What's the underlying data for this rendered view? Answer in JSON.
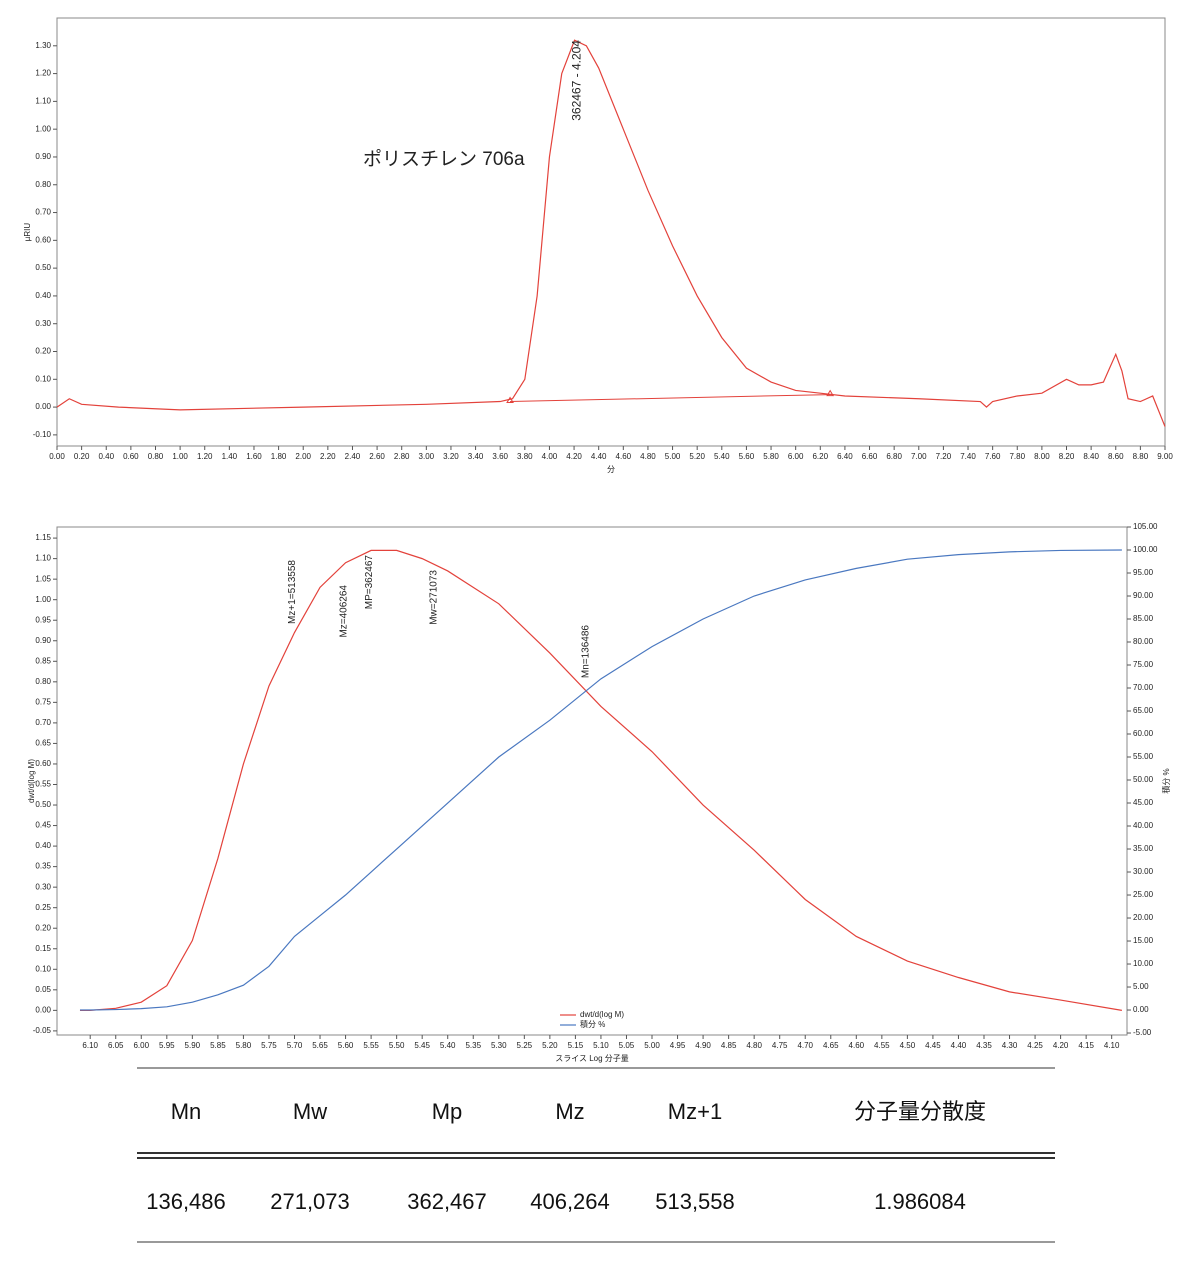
{
  "chart_data": [
    {
      "type": "line",
      "title": "ポリスチレン 706a",
      "xlabel": "分",
      "ylabel": "µRIU",
      "color": "#e3423b",
      "xlim": [
        0,
        9
      ],
      "ylim": [
        -0.14,
        1.4
      ],
      "x": [
        0,
        0.1,
        0.2,
        0.5,
        1.0,
        2.0,
        3.0,
        3.6,
        3.7,
        3.8,
        3.9,
        4.0,
        4.1,
        4.204,
        4.3,
        4.4,
        4.6,
        4.8,
        5.0,
        5.2,
        5.4,
        5.6,
        5.8,
        6.0,
        6.2,
        6.4,
        7.0,
        7.5,
        7.55,
        7.6,
        7.8,
        8.0,
        8.2,
        8.3,
        8.4,
        8.5,
        8.55,
        8.6,
        8.65,
        8.7,
        8.8,
        8.9,
        9.0
      ],
      "values": [
        0.0,
        0.03,
        0.01,
        0.0,
        -0.01,
        0.0,
        0.01,
        0.02,
        0.03,
        0.1,
        0.4,
        0.9,
        1.2,
        1.32,
        1.3,
        1.22,
        1.0,
        0.78,
        0.58,
        0.4,
        0.25,
        0.14,
        0.09,
        0.06,
        0.05,
        0.04,
        0.03,
        0.02,
        0.0,
        0.02,
        0.04,
        0.05,
        0.1,
        0.08,
        0.08,
        0.09,
        0.14,
        0.19,
        0.13,
        0.03,
        0.02,
        0.04,
        -0.07
      ],
      "baseline": {
        "x": [
          3.68,
          6.28
        ],
        "values": [
          0.02,
          0.045
        ]
      },
      "annotations": [
        {
          "text": "362467 - 4.204",
          "x": 4.204
        }
      ],
      "xticks": [
        {
          "value": 0,
          "label": "0.00"
        },
        {
          "value": 0.2,
          "label": "0.20"
        },
        {
          "value": 0.4,
          "label": "0.40"
        },
        {
          "value": 0.6,
          "label": "0.60"
        },
        {
          "value": 0.8,
          "label": "0.80"
        },
        {
          "value": 1,
          "label": "1.00"
        },
        {
          "value": 1.2,
          "label": "1.20"
        },
        {
          "value": 1.4,
          "label": "1.40"
        },
        {
          "value": 1.6,
          "label": "1.60"
        },
        {
          "value": 1.8,
          "label": "1.80"
        },
        {
          "value": 2,
          "label": "2.00"
        },
        {
          "value": 2.2,
          "label": "2.20"
        },
        {
          "value": 2.4,
          "label": "2.40"
        },
        {
          "value": 2.6,
          "label": "2.60"
        },
        {
          "value": 2.8,
          "label": "2.80"
        },
        {
          "value": 3,
          "label": "3.00"
        },
        {
          "value": 3.2,
          "label": "3.20"
        },
        {
          "value": 3.4,
          "label": "3.40"
        },
        {
          "value": 3.6,
          "label": "3.60"
        },
        {
          "value": 3.8,
          "label": "3.80"
        },
        {
          "value": 4,
          "label": "4.00"
        },
        {
          "value": 4.2,
          "label": "4.20"
        },
        {
          "value": 4.4,
          "label": "4.40"
        },
        {
          "value": 4.6,
          "label": "4.60"
        },
        {
          "value": 4.8,
          "label": "4.80"
        },
        {
          "value": 5,
          "label": "5.00"
        },
        {
          "value": 5.2,
          "label": "5.20"
        },
        {
          "value": 5.4,
          "label": "5.40"
        },
        {
          "value": 5.6,
          "label": "5.60"
        },
        {
          "value": 5.8,
          "label": "5.80"
        },
        {
          "value": 6,
          "label": "6.00"
        },
        {
          "value": 6.2,
          "label": "6.20"
        },
        {
          "value": 6.4,
          "label": "6.40"
        },
        {
          "value": 6.6,
          "label": "6.60"
        },
        {
          "value": 6.8,
          "label": "6.80"
        },
        {
          "value": 7,
          "label": "7.00"
        },
        {
          "value": 7.2,
          "label": "7.20"
        },
        {
          "value": 7.4,
          "label": "7.40"
        },
        {
          "value": 7.6,
          "label": "7.60"
        },
        {
          "value": 7.8,
          "label": "7.80"
        },
        {
          "value": 8,
          "label": "8.00"
        },
        {
          "value": 8.2,
          "label": "8.20"
        },
        {
          "value": 8.4,
          "label": "8.40"
        },
        {
          "value": 8.6,
          "label": "8.60"
        },
        {
          "value": 8.8,
          "label": "8.80"
        },
        {
          "value": 9,
          "label": "9.00"
        }
      ],
      "yticks": [
        {
          "value": -0.1,
          "label": "-0.10"
        },
        {
          "value": 0,
          "label": "0.00"
        },
        {
          "value": 0.1,
          "label": "0.10"
        },
        {
          "value": 0.2,
          "label": "0.20"
        },
        {
          "value": 0.3,
          "label": "0.30"
        },
        {
          "value": 0.4,
          "label": "0.40"
        },
        {
          "value": 0.5,
          "label": "0.50"
        },
        {
          "value": 0.6,
          "label": "0.60"
        },
        {
          "value": 0.7,
          "label": "0.70"
        },
        {
          "value": 0.8,
          "label": "0.80"
        },
        {
          "value": 0.9,
          "label": "0.90"
        },
        {
          "value": 1.0,
          "label": "1.00"
        },
        {
          "value": 1.1,
          "label": "1.10"
        },
        {
          "value": 1.2,
          "label": "1.20"
        },
        {
          "value": 1.3,
          "label": "1.30"
        }
      ]
    },
    {
      "type": "line",
      "xlabel": "スライス Log 分子量",
      "ylabel": "dwt/d(log M)",
      "y2label": "積分 %",
      "xlim": [
        6.165,
        4.07
      ],
      "ylim": [
        -0.06,
        1.177
      ],
      "y2lim": [
        -5.43,
        105
      ],
      "x": [
        6.12,
        6.1,
        6.05,
        6.0,
        5.95,
        5.9,
        5.85,
        5.8,
        5.75,
        5.7,
        5.65,
        5.6,
        5.55,
        5.5,
        5.45,
        5.4,
        5.3,
        5.2,
        5.1,
        5.0,
        4.9,
        4.8,
        4.7,
        4.6,
        4.5,
        4.4,
        4.3,
        4.2,
        4.08
      ],
      "series": [
        {
          "name": "dwt/d(log M)",
          "color": "#e3423b",
          "values": [
            0.0,
            0.0,
            0.005,
            0.02,
            0.06,
            0.17,
            0.37,
            0.6,
            0.79,
            0.92,
            1.03,
            1.09,
            1.12,
            1.12,
            1.1,
            1.07,
            0.99,
            0.87,
            0.74,
            0.63,
            0.5,
            0.39,
            0.27,
            0.18,
            0.12,
            0.08,
            0.045,
            0.025,
            0.0
          ]
        },
        {
          "name": "積分 %",
          "color": "#4a78c0",
          "axis": "y2",
          "values": [
            0,
            0,
            0.1,
            0.3,
            0.7,
            1.7,
            3.3,
            5.4,
            9.5,
            16,
            20.5,
            25,
            30,
            35,
            40,
            45,
            55,
            63,
            72,
            79,
            85,
            90,
            93.5,
            96,
            98,
            99,
            99.6,
            99.9,
            100
          ]
        }
      ],
      "annotations": [
        {
          "text": "Mz+1=513558",
          "x": 5.71
        },
        {
          "text": "Mz=406264",
          "x": 5.609
        },
        {
          "text": "MP=362467",
          "x": 5.559
        },
        {
          "text": "Mw=271073",
          "x": 5.433
        },
        {
          "text": "Mn=136486",
          "x": 5.135
        }
      ],
      "xticks": [
        {
          "value": 6.1,
          "label": "6.10"
        },
        {
          "value": 6.05,
          "label": "6.05"
        },
        {
          "value": 6,
          "label": "6.00"
        },
        {
          "value": 5.95,
          "label": "5.95"
        },
        {
          "value": 5.9,
          "label": "5.90"
        },
        {
          "value": 5.85,
          "label": "5.85"
        },
        {
          "value": 5.8,
          "label": "5.80"
        },
        {
          "value": 5.75,
          "label": "5.75"
        },
        {
          "value": 5.7,
          "label": "5.70"
        },
        {
          "value": 5.65,
          "label": "5.65"
        },
        {
          "value": 5.6,
          "label": "5.60"
        },
        {
          "value": 5.55,
          "label": "5.55"
        },
        {
          "value": 5.5,
          "label": "5.50"
        },
        {
          "value": 5.45,
          "label": "5.45"
        },
        {
          "value": 5.4,
          "label": "5.40"
        },
        {
          "value": 5.35,
          "label": "5.35"
        },
        {
          "value": 5.3,
          "label": "5.30"
        },
        {
          "value": 5.25,
          "label": "5.25"
        },
        {
          "value": 5.2,
          "label": "5.20"
        },
        {
          "value": 5.15,
          "label": "5.15"
        },
        {
          "value": 5.1,
          "label": "5.10"
        },
        {
          "value": 5.05,
          "label": "5.05"
        },
        {
          "value": 5,
          "label": "5.00"
        },
        {
          "value": 4.95,
          "label": "4.95"
        },
        {
          "value": 4.9,
          "label": "4.90"
        },
        {
          "value": 4.85,
          "label": "4.85"
        },
        {
          "value": 4.8,
          "label": "4.80"
        },
        {
          "value": 4.75,
          "label": "4.75"
        },
        {
          "value": 4.7,
          "label": "4.70"
        },
        {
          "value": 4.65,
          "label": "4.65"
        },
        {
          "value": 4.6,
          "label": "4.60"
        },
        {
          "value": 4.55,
          "label": "4.55"
        },
        {
          "value": 4.5,
          "label": "4.50"
        },
        {
          "value": 4.45,
          "label": "4.45"
        },
        {
          "value": 4.4,
          "label": "4.40"
        },
        {
          "value": 4.35,
          "label": "4.35"
        },
        {
          "value": 4.3,
          "label": "4.30"
        },
        {
          "value": 4.25,
          "label": "4.25"
        },
        {
          "value": 4.2,
          "label": "4.20"
        },
        {
          "value": 4.15,
          "label": "4.15"
        },
        {
          "value": 4.1,
          "label": "4.10"
        }
      ],
      "yticks": [
        {
          "value": -0.05,
          "label": "-0.05"
        },
        {
          "value": 0,
          "label": "0.00"
        },
        {
          "value": 0.05,
          "label": "0.05"
        },
        {
          "value": 0.1,
          "label": "0.10"
        },
        {
          "value": 0.15,
          "label": "0.15"
        },
        {
          "value": 0.2,
          "label": "0.20"
        },
        {
          "value": 0.25,
          "label": "0.25"
        },
        {
          "value": 0.3,
          "label": "0.30"
        },
        {
          "value": 0.35,
          "label": "0.35"
        },
        {
          "value": 0.4,
          "label": "0.40"
        },
        {
          "value": 0.45,
          "label": "0.45"
        },
        {
          "value": 0.5,
          "label": "0.50"
        },
        {
          "value": 0.55,
          "label": "0.55"
        },
        {
          "value": 0.6,
          "label": "0.60"
        },
        {
          "value": 0.65,
          "label": "0.65"
        },
        {
          "value": 0.7,
          "label": "0.70"
        },
        {
          "value": 0.75,
          "label": "0.75"
        },
        {
          "value": 0.8,
          "label": "0.80"
        },
        {
          "value": 0.85,
          "label": "0.85"
        },
        {
          "value": 0.9,
          "label": "0.90"
        },
        {
          "value": 0.95,
          "label": "0.95"
        },
        {
          "value": 1.0,
          "label": "1.00"
        },
        {
          "value": 1.05,
          "label": "1.05"
        },
        {
          "value": 1.1,
          "label": "1.10"
        },
        {
          "value": 1.15,
          "label": "1.15"
        }
      ],
      "y2ticks": [
        {
          "value": -5,
          "label": "-5.00"
        },
        {
          "value": 0,
          "label": "0.00"
        },
        {
          "value": 5,
          "label": "5.00"
        },
        {
          "value": 10,
          "label": "10.00"
        },
        {
          "value": 15,
          "label": "15.00"
        },
        {
          "value": 20,
          "label": "20.00"
        },
        {
          "value": 25,
          "label": "25.00"
        },
        {
          "value": 30,
          "label": "30.00"
        },
        {
          "value": 35,
          "label": "35.00"
        },
        {
          "value": 40,
          "label": "40.00"
        },
        {
          "value": 45,
          "label": "45.00"
        },
        {
          "value": 50,
          "label": "50.00"
        },
        {
          "value": 55,
          "label": "55.00"
        },
        {
          "value": 60,
          "label": "60.00"
        },
        {
          "value": 65,
          "label": "65.00"
        },
        {
          "value": 70,
          "label": "70.00"
        },
        {
          "value": 75,
          "label": "75.00"
        },
        {
          "value": 80,
          "label": "80.00"
        },
        {
          "value": 85,
          "label": "85.00"
        },
        {
          "value": 90,
          "label": "90.00"
        },
        {
          "value": 95,
          "label": "95.00"
        },
        {
          "value": 100,
          "label": "100.00"
        },
        {
          "value": 105,
          "label": "105.00"
        }
      ]
    }
  ],
  "table": {
    "header": [
      "Mn",
      "Mw",
      "Mp",
      "Mz",
      "Mz+1",
      "分子量分散度"
    ],
    "rows": [
      [
        "136,486",
        "271,073",
        "362,467",
        "406,264",
        "513,558",
        "1.986084"
      ]
    ]
  }
}
